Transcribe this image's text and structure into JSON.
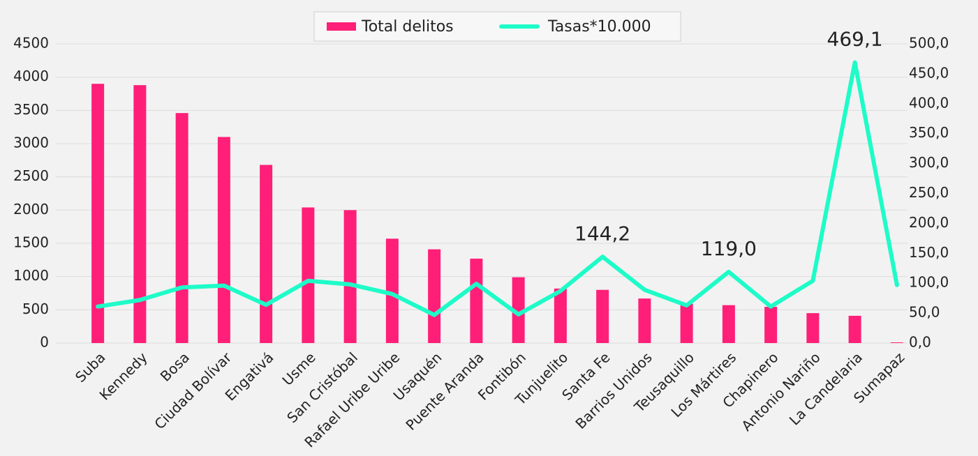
{
  "chart_data": {
    "type": "bar_line",
    "categories": [
      "Suba",
      "Kennedy",
      "Bosa",
      "Ciudad Bolívar",
      "Engativá",
      "Usme",
      "San Cristóbal",
      "Rafael Uribe Uribe",
      "Usaquén",
      "Puente Aranda",
      "Fontibón",
      "Tunjuelito",
      "Santa Fe",
      "Barrios Unidos",
      "Teusaquillo",
      "Los Mártires",
      "Chapinero",
      "Antonio Nariño",
      "La Candelaria",
      "Sumapaz"
    ],
    "series": [
      {
        "name": "Total delitos",
        "type": "bar",
        "color": "#ff1f78",
        "values": [
          3900,
          3880,
          3460,
          3100,
          2680,
          2040,
          2000,
          1570,
          1410,
          1270,
          990,
          820,
          800,
          670,
          590,
          570,
          545,
          450,
          410,
          10
        ]
      },
      {
        "name": "Tasas*10.000",
        "type": "line",
        "axis": "y2",
        "color": "#1efcc8",
        "values": [
          61,
          72,
          93,
          96,
          64,
          104,
          98,
          82,
          47,
          99,
          48,
          87,
          144.2,
          89,
          63,
          119.0,
          61,
          104,
          469.1,
          97
        ],
        "value_labels": [
          null,
          null,
          null,
          null,
          null,
          null,
          null,
          null,
          null,
          null,
          null,
          null,
          "144,2",
          null,
          null,
          "119,0",
          null,
          null,
          "469,1",
          null
        ]
      }
    ],
    "ylim": [
      0,
      4500
    ],
    "yticks": [
      0,
      500,
      1000,
      1500,
      2000,
      2500,
      3000,
      3500,
      4000,
      4500
    ],
    "y2lim": [
      0,
      500
    ],
    "y2ticks": [
      {
        "value": 0,
        "label": "0,0"
      },
      {
        "value": 50,
        "label": "50,0"
      },
      {
        "value": 100,
        "label": "100,0"
      },
      {
        "value": 150,
        "label": "150,0"
      },
      {
        "value": 200,
        "label": "200,0"
      },
      {
        "value": 250,
        "label": "250,0"
      },
      {
        "value": 300,
        "label": "300,0"
      },
      {
        "value": 350,
        "label": "350,0"
      },
      {
        "value": 400,
        "label": "400,0"
      },
      {
        "value": 450,
        "label": "450,0"
      },
      {
        "value": 500,
        "label": "500,0"
      }
    ],
    "grid": true,
    "legend": "top"
  }
}
